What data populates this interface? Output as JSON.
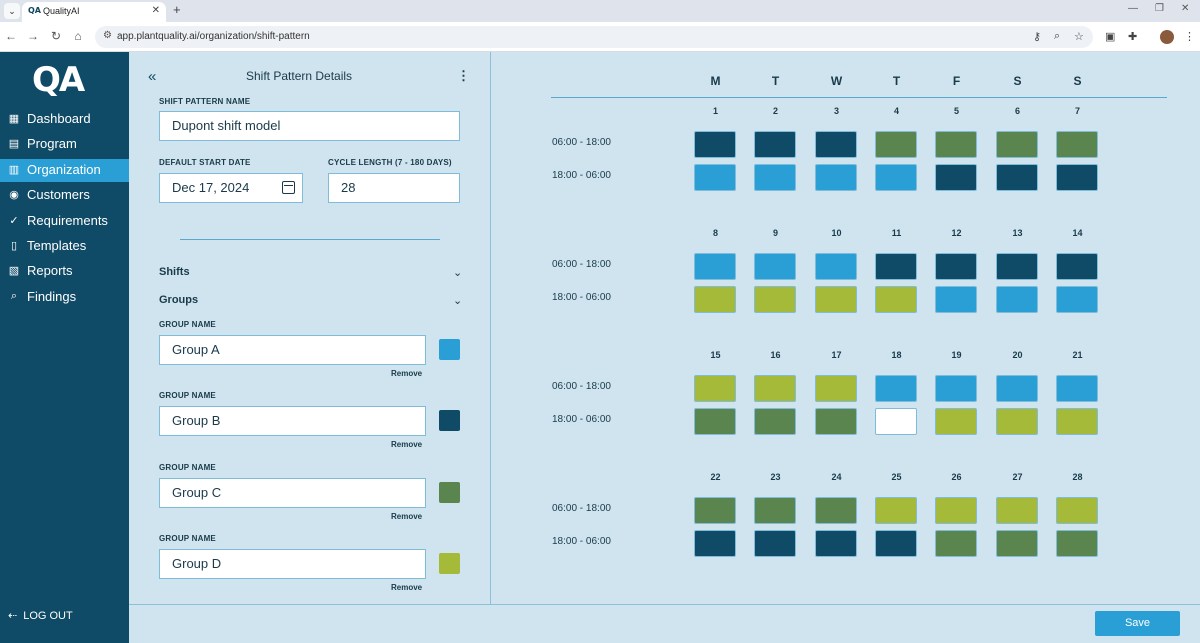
{
  "browser": {
    "tab_title": "QualityAI",
    "favicon_text": "QA",
    "url": "app.plantquality.ai/organization/shift-pattern"
  },
  "sidebar": {
    "logo": "QA",
    "items": [
      {
        "label": "Dashboard",
        "icon": "grid-icon"
      },
      {
        "label": "Program",
        "icon": "calendar-icon"
      },
      {
        "label": "Organization",
        "icon": "building-icon"
      },
      {
        "label": "Customers",
        "icon": "customers-icon"
      },
      {
        "label": "Requirements",
        "icon": "check-circle-icon"
      },
      {
        "label": "Templates",
        "icon": "document-icon"
      },
      {
        "label": "Reports",
        "icon": "reports-icon"
      },
      {
        "label": "Findings",
        "icon": "search-icon"
      }
    ],
    "active_item": "Organization",
    "logout": "LOG OUT"
  },
  "panel": {
    "title": "Shift Pattern Details",
    "pattern_name_label": "SHIFT PATTERN NAME",
    "pattern_name_value": "Dupont shift model",
    "start_date_label": "DEFAULT START DATE",
    "start_date_value": "Dec 17, 2024",
    "cycle_length_label": "CYCLE LENGTH (7 - 180 DAYS)",
    "cycle_length_value": "28",
    "shifts_label": "Shifts",
    "groups_label": "Groups",
    "group_name_label": "GROUP NAME",
    "remove_label": "Remove",
    "groups": [
      {
        "name": "Group A",
        "color": "#2a9fd6"
      },
      {
        "name": "Group B",
        "color": "#0f4a66"
      },
      {
        "name": "Group C",
        "color": "#5a854e"
      },
      {
        "name": "Group D",
        "color": "#a4ba38"
      }
    ]
  },
  "calendar": {
    "weekdays": [
      "M",
      "T",
      "W",
      "T",
      "F",
      "S",
      "S"
    ],
    "shift_labels": [
      "06:00 - 18:00",
      "18:00 - 06:00"
    ],
    "weeks": [
      {
        "days": [
          "1",
          "2",
          "3",
          "4",
          "5",
          "6",
          "7"
        ],
        "day_shift": [
          "B",
          "B",
          "B",
          "C",
          "C",
          "C",
          "C"
        ],
        "night_shift": [
          "A",
          "A",
          "A",
          "A",
          "B",
          "B",
          "B"
        ]
      },
      {
        "days": [
          "8",
          "9",
          "10",
          "11",
          "12",
          "13",
          "14"
        ],
        "day_shift": [
          "A",
          "A",
          "A",
          "B",
          "B",
          "B",
          "B"
        ],
        "night_shift": [
          "D",
          "D",
          "D",
          "D",
          "A",
          "A",
          "A"
        ]
      },
      {
        "days": [
          "15",
          "16",
          "17",
          "18",
          "19",
          "20",
          "21"
        ],
        "day_shift": [
          "D",
          "D",
          "D",
          "A",
          "A",
          "A",
          "A"
        ],
        "night_shift": [
          "C",
          "C",
          "C",
          "empty",
          "D",
          "D",
          "D"
        ]
      },
      {
        "days": [
          "22",
          "23",
          "24",
          "25",
          "26",
          "27",
          "28"
        ],
        "day_shift": [
          "C",
          "C",
          "C",
          "D",
          "D",
          "D",
          "D"
        ],
        "night_shift": [
          "B",
          "B",
          "B",
          "B",
          "C",
          "C",
          "C"
        ]
      }
    ],
    "group_colors": {
      "A": "#2a9fd6",
      "B": "#0f4a66",
      "C": "#5a854e",
      "D": "#a4ba38",
      "empty": "#ffffff"
    }
  },
  "footer": {
    "save_label": "Save"
  }
}
